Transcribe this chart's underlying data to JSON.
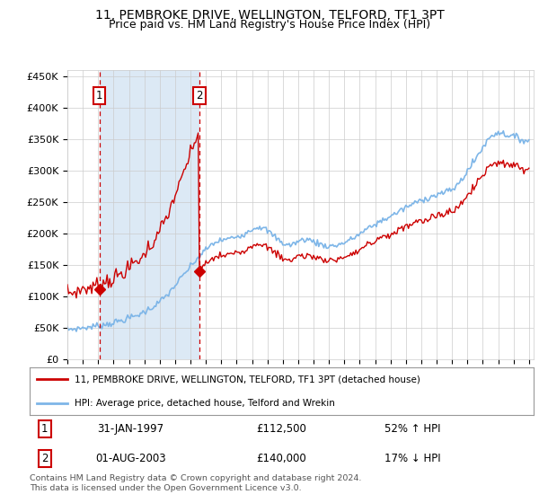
{
  "title": "11, PEMBROKE DRIVE, WELLINGTON, TELFORD, TF1 3PT",
  "subtitle": "Price paid vs. HM Land Registry's House Price Index (HPI)",
  "ylim": [
    0,
    460000
  ],
  "yticks": [
    0,
    50000,
    100000,
    150000,
    200000,
    250000,
    300000,
    350000,
    400000,
    450000
  ],
  "ytick_labels": [
    "£0",
    "£50K",
    "£100K",
    "£150K",
    "£200K",
    "£250K",
    "£300K",
    "£350K",
    "£400K",
    "£450K"
  ],
  "sale1_date": 1997.08,
  "sale1_price": 112500,
  "sale2_date": 2003.58,
  "sale2_price": 140000,
  "hpi_color": "#7EB6E8",
  "sale_color": "#CC0000",
  "vline_color": "#CC0000",
  "shade_color": "#DCE9F5",
  "grid_color": "#CCCCCC",
  "background_color": "#FFFFFF",
  "legend_sale_label": "11, PEMBROKE DRIVE, WELLINGTON, TELFORD, TF1 3PT (detached house)",
  "legend_hpi_label": "HPI: Average price, detached house, Telford and Wrekin",
  "table_rows": [
    {
      "num": "1",
      "date": "31-JAN-1997",
      "price": "£112,500",
      "change": "52% ↑ HPI"
    },
    {
      "num": "2",
      "date": "01-AUG-2003",
      "price": "£140,000",
      "change": "17% ↓ HPI"
    }
  ],
  "footer": "Contains HM Land Registry data © Crown copyright and database right 2024.\nThis data is licensed under the Open Government Licence v3.0.",
  "title_fontsize": 10,
  "subtitle_fontsize": 9,
  "hpi_keypoints": [
    [
      1995.0,
      48000
    ],
    [
      1995.5,
      49000
    ],
    [
      1996.0,
      50500
    ],
    [
      1996.5,
      52000
    ],
    [
      1997.0,
      54000
    ],
    [
      1997.5,
      56000
    ],
    [
      1998.0,
      59000
    ],
    [
      1998.5,
      62000
    ],
    [
      1999.0,
      66000
    ],
    [
      1999.5,
      70000
    ],
    [
      2000.0,
      76000
    ],
    [
      2000.5,
      83000
    ],
    [
      2001.0,
      92000
    ],
    [
      2001.5,
      103000
    ],
    [
      2002.0,
      118000
    ],
    [
      2002.5,
      133000
    ],
    [
      2003.0,
      148000
    ],
    [
      2003.5,
      162000
    ],
    [
      2004.0,
      175000
    ],
    [
      2004.5,
      185000
    ],
    [
      2005.0,
      190000
    ],
    [
      2005.5,
      192000
    ],
    [
      2006.0,
      196000
    ],
    [
      2006.5,
      200000
    ],
    [
      2007.0,
      208000
    ],
    [
      2007.5,
      212000
    ],
    [
      2008.0,
      205000
    ],
    [
      2008.5,
      195000
    ],
    [
      2009.0,
      185000
    ],
    [
      2009.5,
      182000
    ],
    [
      2010.0,
      188000
    ],
    [
      2010.5,
      192000
    ],
    [
      2011.0,
      188000
    ],
    [
      2011.5,
      183000
    ],
    [
      2012.0,
      180000
    ],
    [
      2012.5,
      182000
    ],
    [
      2013.0,
      186000
    ],
    [
      2013.5,
      192000
    ],
    [
      2014.0,
      200000
    ],
    [
      2014.5,
      208000
    ],
    [
      2015.0,
      215000
    ],
    [
      2015.5,
      222000
    ],
    [
      2016.0,
      228000
    ],
    [
      2016.5,
      235000
    ],
    [
      2017.0,
      242000
    ],
    [
      2017.5,
      248000
    ],
    [
      2018.0,
      254000
    ],
    [
      2018.5,
      258000
    ],
    [
      2019.0,
      262000
    ],
    [
      2019.5,
      266000
    ],
    [
      2020.0,
      270000
    ],
    [
      2020.5,
      282000
    ],
    [
      2021.0,
      300000
    ],
    [
      2021.5,
      318000
    ],
    [
      2022.0,
      338000
    ],
    [
      2022.5,
      355000
    ],
    [
      2023.0,
      362000
    ],
    [
      2023.5,
      358000
    ],
    [
      2024.0,
      355000
    ],
    [
      2024.5,
      350000
    ],
    [
      2025.0,
      348000
    ]
  ]
}
